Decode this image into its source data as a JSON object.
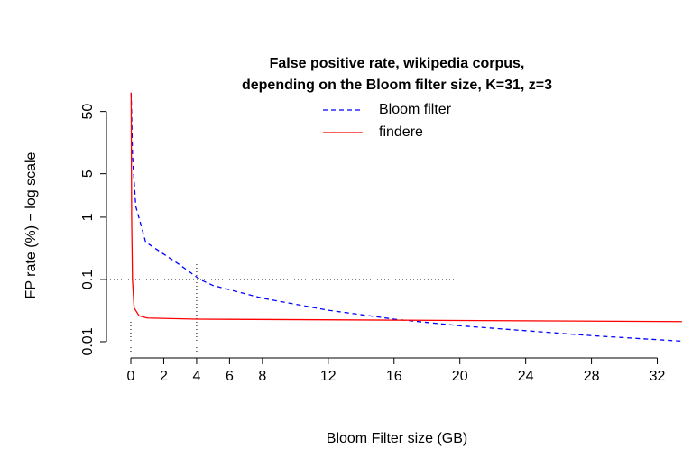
{
  "chart_data": {
    "type": "line",
    "title": [
      "False positive rate, wikipedia corpus,",
      "depending on the Bloom filter size, K=31, z=3"
    ],
    "x_label": "Bloom Filter size (GB)",
    "y_label": "FP rate (%) − log scale",
    "log_y": true,
    "xlim": [
      -1.48,
      34
    ],
    "ylim": [
      0.0074,
      110
    ],
    "xticks": [
      0,
      2,
      4,
      6,
      8,
      12,
      16,
      20,
      24,
      28,
      32
    ],
    "yticks": [
      0.01,
      0.1,
      1,
      5,
      50
    ],
    "legend": "top",
    "series": [
      {
        "name": "Bloom filter",
        "color": "#0000ff",
        "dash": true,
        "x": [
          0.02,
          0.1,
          0.3,
          0.9,
          3,
          4.2,
          5,
          8,
          12,
          16,
          20,
          24,
          28,
          33.5
        ],
        "values": [
          100,
          10,
          1.5,
          0.4,
          0.17,
          0.1,
          0.08,
          0.05,
          0.032,
          0.023,
          0.018,
          0.015,
          0.0125,
          0.0102
        ]
      },
      {
        "name": "findere",
        "color": "#ff0000",
        "dash": false,
        "x": [
          0.02,
          0.05,
          0.1,
          0.2,
          0.5,
          1,
          4,
          33.5
        ],
        "values": [
          100,
          1,
          0.1,
          0.035,
          0.026,
          0.024,
          0.023,
          0.021
        ]
      }
    ],
    "reference_lines": {
      "h": {
        "y": 0.1,
        "x_end": 20
      },
      "v": [
        {
          "x": 0,
          "y_end": 0.022
        },
        {
          "x": 4,
          "y_end": 0.19
        }
      ]
    }
  }
}
